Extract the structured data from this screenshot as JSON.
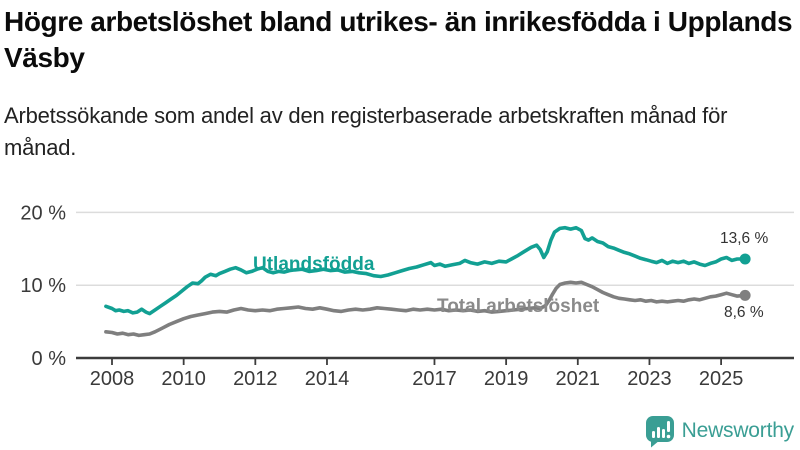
{
  "header": {
    "title": "Högre arbetslöshet bland utrikes- än inrikesfödda i Upplands Väsby",
    "subtitle": "Arbetssökande som andel av den registerbaserade arbetskraften månad för månad."
  },
  "chart_data": {
    "type": "line",
    "title": "Högre arbetslöshet bland utrikes- än inrikesfödda i Upplands Väsby",
    "ylabel": "",
    "xlabel": "",
    "unit": "%",
    "ylim": [
      0,
      20
    ],
    "grid": true,
    "legend_position": "inline-labels-on-lines",
    "y_ticks": [
      {
        "value": 0,
        "label": "0 %"
      },
      {
        "value": 10,
        "label": "10 %"
      },
      {
        "value": 20,
        "label": "20 %"
      }
    ],
    "x_ticks": [
      {
        "value": 2008,
        "label": "2008"
      },
      {
        "value": 2010,
        "label": "2010"
      },
      {
        "value": 2012,
        "label": "2012"
      },
      {
        "value": 2014,
        "label": "2014"
      },
      {
        "value": 2017,
        "label": "2017"
      },
      {
        "value": 2019,
        "label": "2019"
      },
      {
        "value": 2021,
        "label": "2021"
      },
      {
        "value": 2023,
        "label": "2023"
      },
      {
        "value": 2025,
        "label": "2025"
      }
    ],
    "series": [
      {
        "name": "Utlandsfödda",
        "color": "#12a093",
        "end_label": "13,6 %",
        "end_value": 13.6,
        "points": [
          [
            2007.83,
            7.1
          ],
          [
            2008.0,
            6.8
          ],
          [
            2008.1,
            6.5
          ],
          [
            2008.2,
            6.6
          ],
          [
            2008.33,
            6.4
          ],
          [
            2008.45,
            6.5
          ],
          [
            2008.58,
            6.2
          ],
          [
            2008.7,
            6.3
          ],
          [
            2008.83,
            6.7
          ],
          [
            2008.95,
            6.3
          ],
          [
            2009.05,
            6.1
          ],
          [
            2009.2,
            6.6
          ],
          [
            2009.35,
            7.1
          ],
          [
            2009.5,
            7.6
          ],
          [
            2009.65,
            8.1
          ],
          [
            2009.8,
            8.6
          ],
          [
            2009.95,
            9.2
          ],
          [
            2010.1,
            9.8
          ],
          [
            2010.25,
            10.3
          ],
          [
            2010.4,
            10.2
          ],
          [
            2010.5,
            10.6
          ],
          [
            2010.6,
            11.1
          ],
          [
            2010.75,
            11.5
          ],
          [
            2010.9,
            11.3
          ],
          [
            2011.0,
            11.6
          ],
          [
            2011.15,
            11.9
          ],
          [
            2011.3,
            12.2
          ],
          [
            2011.45,
            12.4
          ],
          [
            2011.6,
            12.1
          ],
          [
            2011.75,
            11.7
          ],
          [
            2011.9,
            11.9
          ],
          [
            2012.05,
            12.2
          ],
          [
            2012.2,
            12.4
          ],
          [
            2012.35,
            11.9
          ],
          [
            2012.5,
            11.7
          ],
          [
            2012.65,
            11.9
          ],
          [
            2012.8,
            11.8
          ],
          [
            2012.95,
            12.0
          ],
          [
            2013.1,
            12.1
          ],
          [
            2013.3,
            12.2
          ],
          [
            2013.5,
            11.9
          ],
          [
            2013.7,
            12.0
          ],
          [
            2013.9,
            12.2
          ],
          [
            2014.1,
            12.0
          ],
          [
            2014.3,
            12.1
          ],
          [
            2014.5,
            11.8
          ],
          [
            2014.7,
            11.9
          ],
          [
            2014.9,
            11.7
          ],
          [
            2015.1,
            11.6
          ],
          [
            2015.3,
            11.3
          ],
          [
            2015.5,
            11.2
          ],
          [
            2015.7,
            11.4
          ],
          [
            2015.9,
            11.7
          ],
          [
            2016.1,
            12.0
          ],
          [
            2016.3,
            12.3
          ],
          [
            2016.5,
            12.5
          ],
          [
            2016.7,
            12.8
          ],
          [
            2016.9,
            13.1
          ],
          [
            2017.0,
            12.7
          ],
          [
            2017.15,
            12.9
          ],
          [
            2017.3,
            12.6
          ],
          [
            2017.5,
            12.8
          ],
          [
            2017.7,
            13.0
          ],
          [
            2017.85,
            13.4
          ],
          [
            2018.0,
            13.1
          ],
          [
            2018.2,
            12.9
          ],
          [
            2018.4,
            13.2
          ],
          [
            2018.6,
            13.0
          ],
          [
            2018.8,
            13.3
          ],
          [
            2019.0,
            13.2
          ],
          [
            2019.15,
            13.6
          ],
          [
            2019.3,
            14.0
          ],
          [
            2019.5,
            14.6
          ],
          [
            2019.7,
            15.2
          ],
          [
            2019.85,
            15.5
          ],
          [
            2019.95,
            14.9
          ],
          [
            2020.05,
            13.8
          ],
          [
            2020.15,
            14.6
          ],
          [
            2020.25,
            16.2
          ],
          [
            2020.35,
            17.3
          ],
          [
            2020.5,
            17.8
          ],
          [
            2020.65,
            17.9
          ],
          [
            2020.8,
            17.7
          ],
          [
            2020.95,
            17.9
          ],
          [
            2021.1,
            17.5
          ],
          [
            2021.2,
            16.4
          ],
          [
            2021.3,
            16.2
          ],
          [
            2021.4,
            16.5
          ],
          [
            2021.55,
            16.0
          ],
          [
            2021.7,
            15.8
          ],
          [
            2021.85,
            15.3
          ],
          [
            2022.0,
            15.1
          ],
          [
            2022.15,
            14.8
          ],
          [
            2022.3,
            14.5
          ],
          [
            2022.45,
            14.3
          ],
          [
            2022.6,
            14.0
          ],
          [
            2022.75,
            13.7
          ],
          [
            2022.9,
            13.5
          ],
          [
            2023.05,
            13.3
          ],
          [
            2023.2,
            13.1
          ],
          [
            2023.35,
            13.4
          ],
          [
            2023.5,
            13.0
          ],
          [
            2023.65,
            13.3
          ],
          [
            2023.8,
            13.1
          ],
          [
            2023.95,
            13.3
          ],
          [
            2024.1,
            13.0
          ],
          [
            2024.25,
            13.2
          ],
          [
            2024.4,
            12.9
          ],
          [
            2024.55,
            12.7
          ],
          [
            2024.7,
            13.0
          ],
          [
            2024.85,
            13.2
          ],
          [
            2025.0,
            13.6
          ],
          [
            2025.15,
            13.8
          ],
          [
            2025.3,
            13.4
          ],
          [
            2025.45,
            13.6
          ],
          [
            2025.67,
            13.6
          ]
        ]
      },
      {
        "name": "Total arbetslöshet",
        "color": "#7f7f7f",
        "end_label": "8,6 %",
        "end_value": 8.6,
        "points": [
          [
            2007.83,
            3.6
          ],
          [
            2008.0,
            3.5
          ],
          [
            2008.15,
            3.3
          ],
          [
            2008.3,
            3.4
          ],
          [
            2008.45,
            3.2
          ],
          [
            2008.6,
            3.3
          ],
          [
            2008.75,
            3.1
          ],
          [
            2008.9,
            3.2
          ],
          [
            2009.05,
            3.3
          ],
          [
            2009.2,
            3.6
          ],
          [
            2009.4,
            4.1
          ],
          [
            2009.6,
            4.6
          ],
          [
            2009.8,
            5.0
          ],
          [
            2010.0,
            5.4
          ],
          [
            2010.2,
            5.7
          ],
          [
            2010.4,
            5.9
          ],
          [
            2010.6,
            6.1
          ],
          [
            2010.8,
            6.3
          ],
          [
            2011.0,
            6.4
          ],
          [
            2011.2,
            6.3
          ],
          [
            2011.4,
            6.6
          ],
          [
            2011.6,
            6.8
          ],
          [
            2011.8,
            6.6
          ],
          [
            2012.0,
            6.5
          ],
          [
            2012.2,
            6.6
          ],
          [
            2012.4,
            6.5
          ],
          [
            2012.6,
            6.7
          ],
          [
            2012.8,
            6.8
          ],
          [
            2013.0,
            6.9
          ],
          [
            2013.2,
            7.0
          ],
          [
            2013.4,
            6.8
          ],
          [
            2013.6,
            6.7
          ],
          [
            2013.8,
            6.9
          ],
          [
            2014.0,
            6.7
          ],
          [
            2014.2,
            6.5
          ],
          [
            2014.4,
            6.4
          ],
          [
            2014.6,
            6.6
          ],
          [
            2014.8,
            6.7
          ],
          [
            2015.0,
            6.6
          ],
          [
            2015.2,
            6.7
          ],
          [
            2015.4,
            6.9
          ],
          [
            2015.6,
            6.8
          ],
          [
            2015.8,
            6.7
          ],
          [
            2016.0,
            6.6
          ],
          [
            2016.2,
            6.5
          ],
          [
            2016.4,
            6.7
          ],
          [
            2016.6,
            6.6
          ],
          [
            2016.8,
            6.7
          ],
          [
            2017.0,
            6.6
          ],
          [
            2017.2,
            6.7
          ],
          [
            2017.4,
            6.5
          ],
          [
            2017.6,
            6.6
          ],
          [
            2017.8,
            6.5
          ],
          [
            2018.0,
            6.6
          ],
          [
            2018.2,
            6.4
          ],
          [
            2018.4,
            6.5
          ],
          [
            2018.6,
            6.3
          ],
          [
            2018.8,
            6.4
          ],
          [
            2019.0,
            6.5
          ],
          [
            2019.2,
            6.6
          ],
          [
            2019.4,
            6.7
          ],
          [
            2019.6,
            6.8
          ],
          [
            2019.8,
            6.9
          ],
          [
            2019.95,
            6.8
          ],
          [
            2020.1,
            7.2
          ],
          [
            2020.2,
            7.9
          ],
          [
            2020.3,
            8.8
          ],
          [
            2020.4,
            9.6
          ],
          [
            2020.5,
            10.1
          ],
          [
            2020.65,
            10.3
          ],
          [
            2020.8,
            10.4
          ],
          [
            2020.95,
            10.3
          ],
          [
            2021.1,
            10.4
          ],
          [
            2021.25,
            10.1
          ],
          [
            2021.4,
            9.8
          ],
          [
            2021.55,
            9.4
          ],
          [
            2021.7,
            9.0
          ],
          [
            2021.85,
            8.7
          ],
          [
            2022.0,
            8.4
          ],
          [
            2022.15,
            8.2
          ],
          [
            2022.3,
            8.1
          ],
          [
            2022.45,
            8.0
          ],
          [
            2022.6,
            7.9
          ],
          [
            2022.75,
            8.0
          ],
          [
            2022.9,
            7.8
          ],
          [
            2023.05,
            7.9
          ],
          [
            2023.2,
            7.7
          ],
          [
            2023.35,
            7.8
          ],
          [
            2023.5,
            7.7
          ],
          [
            2023.65,
            7.8
          ],
          [
            2023.8,
            7.9
          ],
          [
            2023.95,
            7.8
          ],
          [
            2024.1,
            8.0
          ],
          [
            2024.25,
            8.1
          ],
          [
            2024.4,
            8.0
          ],
          [
            2024.55,
            8.2
          ],
          [
            2024.7,
            8.4
          ],
          [
            2024.85,
            8.5
          ],
          [
            2025.0,
            8.7
          ],
          [
            2025.15,
            8.9
          ],
          [
            2025.3,
            8.7
          ],
          [
            2025.45,
            8.5
          ],
          [
            2025.67,
            8.6
          ]
        ]
      }
    ]
  },
  "branding": {
    "wordmark": "Newsworthy",
    "logo_icon": "speech-bubble-bar-chart-icon",
    "brand_color": "#3a9e94"
  },
  "colors": {
    "foreign_born_line": "#12a093",
    "total_line": "#7f7f7f",
    "gridline": "#dcdcdc",
    "axis": "#3c3c3c",
    "axis_text": "#3a3a3a",
    "value_label_text": "#333333"
  }
}
